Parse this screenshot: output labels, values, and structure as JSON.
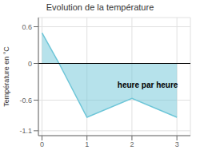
{
  "chart_data": {
    "type": "area",
    "title": "Evolution de la température",
    "ylabel": "Température en °C",
    "annotations": [
      {
        "text": "heure par heure",
        "x": 2.35,
        "y": -0.35
      }
    ],
    "x": [
      0,
      0.38,
      1.0,
      2.0,
      3.0
    ],
    "values": [
      0.5,
      0.0,
      -0.88,
      -0.57,
      -0.88
    ],
    "color": "#6ec6d8",
    "xlim": [
      -0.08,
      3.3
    ],
    "ylim": [
      -1.18,
      0.75
    ],
    "xticks": [
      0,
      1,
      2,
      3
    ],
    "yticks": [
      -1.1,
      -0.6,
      0.0,
      0.6
    ],
    "grid": true
  }
}
